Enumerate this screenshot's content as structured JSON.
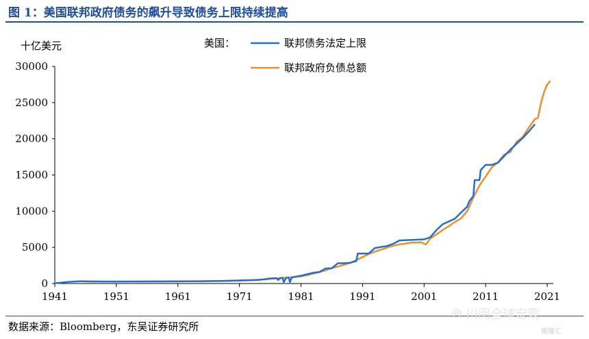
{
  "figure": {
    "title": "图 1：美国联邦政府债务的飙升导致债务上限持续提高",
    "source": "数据来源：Bloomberg，东吴证券研究所",
    "watermark": "川阅全球宏观",
    "watermark_icon": "wechat-icon",
    "watermark2": "格隆汇"
  },
  "chart_data": {
    "type": "line",
    "title": "",
    "ylabel": "十亿美元",
    "legend_title": "美国：",
    "legend_position": "top-center",
    "xlim": [
      1941,
      2022
    ],
    "ylim": [
      0,
      30000
    ],
    "x_ticks": [
      1941,
      1951,
      1961,
      1971,
      1981,
      1991,
      2001,
      2011,
      2021
    ],
    "y_ticks": [
      0,
      5000,
      10000,
      15000,
      20000,
      25000,
      30000
    ],
    "grid": false,
    "series": [
      {
        "name": "联邦债务法定上限",
        "color": "#1f6fd1",
        "points": [
          [
            1941,
            49
          ],
          [
            1942,
            125
          ],
          [
            1943,
            210
          ],
          [
            1944,
            260
          ],
          [
            1945,
            300
          ],
          [
            1946,
            300
          ],
          [
            1950,
            275
          ],
          [
            1955,
            281
          ],
          [
            1958,
            283
          ],
          [
            1960,
            293
          ],
          [
            1965,
            324
          ],
          [
            1968,
            358
          ],
          [
            1970,
            395
          ],
          [
            1972,
            450
          ],
          [
            1974,
            495
          ],
          [
            1975,
            577
          ],
          [
            1976,
            700
          ],
          [
            1977,
            752
          ],
          [
            1977.3,
            480
          ],
          [
            1977.6,
            752
          ],
          [
            1978,
            798
          ],
          [
            1978.2,
            200
          ],
          [
            1978.6,
            798
          ],
          [
            1979,
            830
          ],
          [
            1979.2,
            200
          ],
          [
            1979.5,
            830
          ],
          [
            1980,
            925
          ],
          [
            1981,
            1080
          ],
          [
            1982,
            1290
          ],
          [
            1983,
            1490
          ],
          [
            1984,
            1600
          ],
          [
            1985,
            2079
          ],
          [
            1986,
            2111
          ],
          [
            1987,
            2800
          ],
          [
            1988,
            2800
          ],
          [
            1989,
            2870
          ],
          [
            1990,
            3123
          ],
          [
            1990.2,
            4145
          ],
          [
            1991,
            4145
          ],
          [
            1992,
            4145
          ],
          [
            1993,
            4900
          ],
          [
            1995,
            5200
          ],
          [
            1996,
            5500
          ],
          [
            1997,
            5950
          ],
          [
            2001,
            6100
          ],
          [
            2002,
            6400
          ],
          [
            2003,
            7384
          ],
          [
            2004,
            8184
          ],
          [
            2006,
            8965
          ],
          [
            2007,
            9815
          ],
          [
            2008,
            10615
          ],
          [
            2008.3,
            11315
          ],
          [
            2009,
            12104
          ],
          [
            2009.2,
            14294
          ],
          [
            2010,
            14294
          ],
          [
            2010.2,
            15694
          ],
          [
            2011,
            16394
          ],
          [
            2012,
            16400
          ],
          [
            2013,
            16700
          ],
          [
            2014,
            17600
          ],
          [
            2015,
            18500
          ],
          [
            2016,
            19300
          ],
          [
            2017,
            20100
          ],
          [
            2018,
            21000
          ],
          [
            2019,
            22000
          ]
        ]
      },
      {
        "name": "联邦政府负债总额",
        "color": "#f28c28",
        "points": [
          [
            1946,
            271
          ],
          [
            1950,
            257
          ],
          [
            1955,
            274
          ],
          [
            1960,
            290
          ],
          [
            1965,
            322
          ],
          [
            1970,
            381
          ],
          [
            1973,
            467
          ],
          [
            1975,
            576
          ],
          [
            1977,
            709
          ],
          [
            1978,
            780
          ],
          [
            1979,
            827
          ],
          [
            1980,
            909
          ],
          [
            1981,
            998
          ],
          [
            1982,
            1142
          ],
          [
            1983,
            1377
          ],
          [
            1984,
            1572
          ],
          [
            1985,
            1823
          ],
          [
            1986,
            2125
          ],
          [
            1987,
            2350
          ],
          [
            1988,
            2602
          ],
          [
            1989,
            2857
          ],
          [
            1990,
            3233
          ],
          [
            1991,
            3665
          ],
          [
            1992,
            4065
          ],
          [
            1993,
            4411
          ],
          [
            1994,
            4693
          ],
          [
            1995,
            4974
          ],
          [
            1996,
            5225
          ],
          [
            1997,
            5413
          ],
          [
            1998,
            5526
          ],
          [
            1999,
            5656
          ],
          [
            2000,
            5674
          ],
          [
            2000.5,
            5700
          ],
          [
            2001,
            5500
          ],
          [
            2001.3,
            5400
          ],
          [
            2002,
            6228
          ],
          [
            2003,
            6783
          ],
          [
            2004,
            7379
          ],
          [
            2005,
            7933
          ],
          [
            2006,
            8507
          ],
          [
            2007,
            9008
          ],
          [
            2008,
            10025
          ],
          [
            2009,
            11910
          ],
          [
            2010,
            13562
          ],
          [
            2011,
            14790
          ],
          [
            2012,
            16066
          ],
          [
            2013,
            16738
          ],
          [
            2014,
            17824
          ],
          [
            2015,
            18151
          ],
          [
            2016,
            19573
          ],
          [
            2017,
            20245
          ],
          [
            2018,
            21516
          ],
          [
            2019,
            22719
          ],
          [
            2019.5,
            22900
          ],
          [
            2020,
            25000
          ],
          [
            2020.5,
            26500
          ],
          [
            2021,
            27500
          ],
          [
            2021.5,
            28000
          ]
        ]
      }
    ]
  }
}
